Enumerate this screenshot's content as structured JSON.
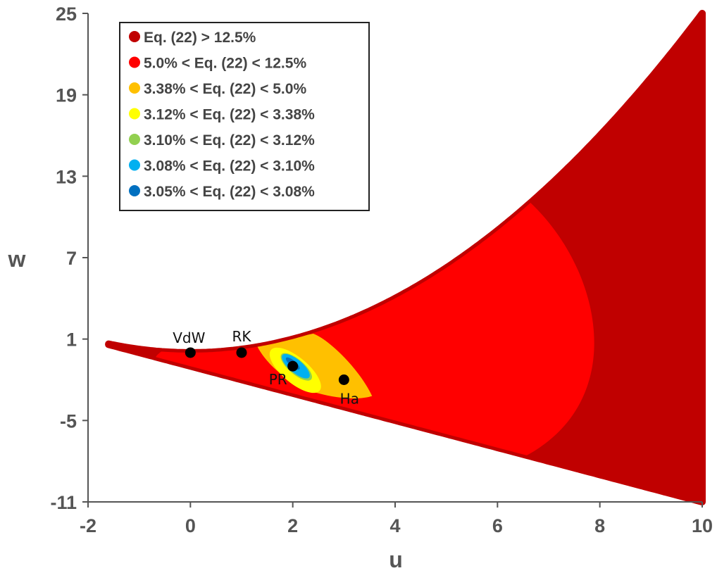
{
  "chart_data": {
    "type": "contour",
    "xlabel": "u",
    "ylabel": "w",
    "xlim": [
      -2,
      10
    ],
    "ylim": [
      -11,
      25
    ],
    "xticks": [
      -2,
      0,
      2,
      4,
      6,
      8,
      10
    ],
    "yticks": [
      25,
      19,
      13,
      7,
      1,
      -5,
      -11
    ],
    "legend": {
      "position": "top-left",
      "entries": [
        {
          "label": "Eq. (22) > 12.5%",
          "color": "#C00000"
        },
        {
          "label": "5.0% < Eq. (22) < 12.5%",
          "color": "#FF0000"
        },
        {
          "label": "3.38% < Eq. (22) < 5.0%",
          "color": "#FFC000"
        },
        {
          "label": "3.12% < Eq. (22) < 3.38%",
          "color": "#FFFF00"
        },
        {
          "label": "3.10% < Eq. (22) < 3.12%",
          "color": "#92D050"
        },
        {
          "label": "3.08% < Eq. (22) < 3.10%",
          "color": "#00B0F0"
        },
        {
          "label": "3.05% < Eq. (22) < 3.08%",
          "color": "#0070C0"
        }
      ]
    },
    "points": [
      {
        "label": "VdW",
        "u": 0,
        "w": 0
      },
      {
        "label": "RK",
        "u": 1,
        "w": 0
      },
      {
        "label": "PR",
        "u": 2,
        "w": -1
      },
      {
        "label": "Ha",
        "u": 3,
        "w": -2
      }
    ],
    "domain_boundary": {
      "upper": "w = u^2/4",
      "lower": "w = -u - 1",
      "u_range": [
        -1.6,
        10
      ]
    }
  }
}
